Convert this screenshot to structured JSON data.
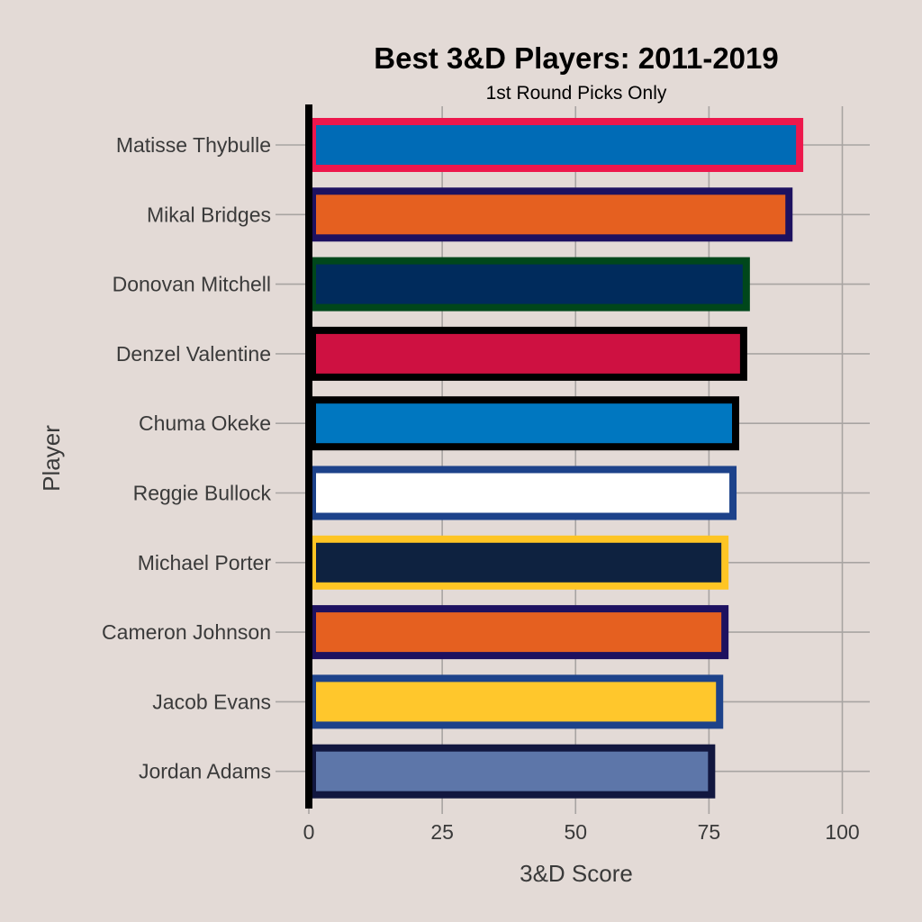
{
  "chart_data": {
    "type": "bar",
    "orientation": "horizontal",
    "title": "Best 3&D Players: 2011-2019",
    "subtitle": "1st Round Picks Only",
    "xlabel": "3&D Score",
    "ylabel": "Player",
    "xlim": [
      0,
      100
    ],
    "xticks": [
      0,
      25,
      50,
      75,
      100
    ],
    "grid": true,
    "bars": [
      {
        "player": "Matisse Thybulle",
        "value": 92,
        "fill": "#006BB6",
        "outline": "#ED174C"
      },
      {
        "player": "Mikal Bridges",
        "value": 90,
        "fill": "#E56020",
        "outline": "#1D1160"
      },
      {
        "player": "Donovan Mitchell",
        "value": 82,
        "fill": "#002B5C",
        "outline": "#00471B"
      },
      {
        "player": "Denzel Valentine",
        "value": 81.5,
        "fill": "#CE1141",
        "outline": "#000000"
      },
      {
        "player": "Chuma Okeke",
        "value": 80,
        "fill": "#0077C0",
        "outline": "#000000"
      },
      {
        "player": "Reggie Bullock",
        "value": 79.5,
        "fill": "#FFFFFF",
        "outline": "#1D428A"
      },
      {
        "player": "Michael Porter",
        "value": 78,
        "fill": "#0E2240",
        "outline": "#FEC524"
      },
      {
        "player": "Cameron Johnson",
        "value": 78,
        "fill": "#E56020",
        "outline": "#1D1160"
      },
      {
        "player": "Jacob Evans",
        "value": 77,
        "fill": "#FFC72C",
        "outline": "#1D428A"
      },
      {
        "player": "Jordan Adams",
        "value": 75.5,
        "fill": "#5D76A9",
        "outline": "#12173F"
      }
    ]
  }
}
